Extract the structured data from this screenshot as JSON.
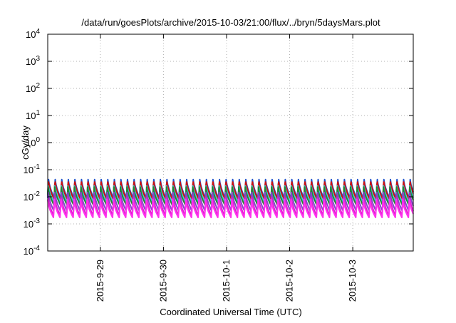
{
  "chart_data": {
    "type": "line",
    "title": "/data/run/goesPlots/archive/2015-10-03/21:00/flux/../bryn/5daysMars.plot",
    "xlabel": "Coordinated Universal Time (UTC)",
    "ylabel": "cGy/day",
    "y_scale": "log",
    "ylim": [
      0.0001,
      10000
    ],
    "y_ticks": [
      {
        "value": 10000,
        "base": "10",
        "exp": "4"
      },
      {
        "value": 1000,
        "base": "10",
        "exp": "3"
      },
      {
        "value": 100,
        "base": "10",
        "exp": "2"
      },
      {
        "value": 10,
        "base": "10",
        "exp": "1"
      },
      {
        "value": 1,
        "base": "10",
        "exp": "0"
      },
      {
        "value": 0.1,
        "base": "10",
        "exp": "-1"
      },
      {
        "value": 0.01,
        "base": "10",
        "exp": "-2"
      },
      {
        "value": 0.001,
        "base": "10",
        "exp": "-3"
      },
      {
        "value": 0.0001,
        "base": "10",
        "exp": "-4"
      }
    ],
    "xlim": [
      "2015-09-28 04:00",
      "2015-10-03 23:00"
    ],
    "x_ticks": [
      {
        "label": "2015-9-29",
        "value": "2015-09-29"
      },
      {
        "label": "2015-9-30",
        "value": "2015-09-30"
      },
      {
        "label": "2015-10-1",
        "value": "2015-10-01"
      },
      {
        "label": "2015-10-2",
        "value": "2015-10-02"
      },
      {
        "label": "2015-10-3",
        "value": "2015-10-03"
      }
    ],
    "grid": true,
    "legend": "none",
    "cycle_hours": 2.5,
    "series": [
      {
        "color": "#2255cc",
        "peak": 0.05,
        "trough": 0.009
      },
      {
        "color": "#cc1111",
        "peak": 0.045,
        "trough": 0.008
      },
      {
        "color": "#33ccdd",
        "peak": 0.03,
        "trough": 0.006
      },
      {
        "color": "#228833",
        "peak": 0.025,
        "trough": 0.005
      },
      {
        "color": "#8844cc",
        "peak": 0.018,
        "trough": 0.003
      },
      {
        "color": "#dd22cc",
        "peak": 0.012,
        "trough": 0.002
      },
      {
        "color": "#ff33ee",
        "peak": 0.008,
        "trough": 0.0017
      }
    ]
  }
}
